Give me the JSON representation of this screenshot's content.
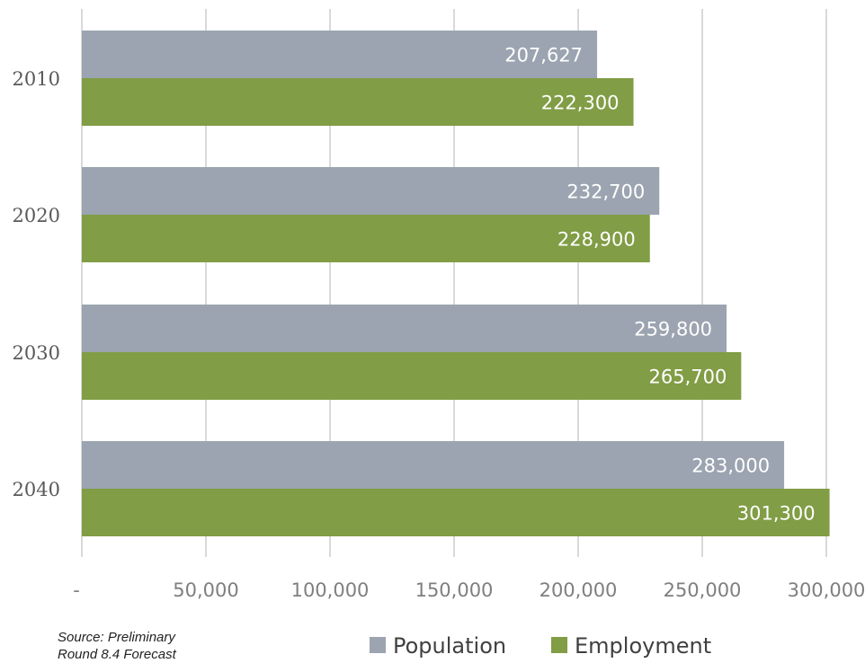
{
  "chart_data": {
    "type": "bar",
    "orientation": "horizontal",
    "categories": [
      "2010",
      "2020",
      "2030",
      "2040"
    ],
    "series": [
      {
        "name": "Population",
        "color": "#9ba4b0",
        "values": [
          207627,
          232700,
          259800,
          283000
        ],
        "labels": [
          "207,627",
          "232,700",
          "259,800",
          "283,000"
        ]
      },
      {
        "name": "Employment",
        "color": "#819d45",
        "values": [
          222300,
          228900,
          265700,
          301300
        ],
        "labels": [
          "222,300",
          "228,900",
          "265,700",
          "301,300"
        ]
      }
    ],
    "xlim": [
      0,
      300000
    ],
    "xticks": [
      0,
      50000,
      100000,
      150000,
      200000,
      250000,
      300000
    ],
    "xtick_labels": [
      "-",
      "50,000",
      "100,000",
      "150,000",
      "200,000",
      "250,000",
      "300,000"
    ],
    "grid": "vertical",
    "legend": "bottom-center"
  },
  "source_note": {
    "line1": "Source: Preliminary",
    "line2": "Round 8.4 Forecast"
  }
}
